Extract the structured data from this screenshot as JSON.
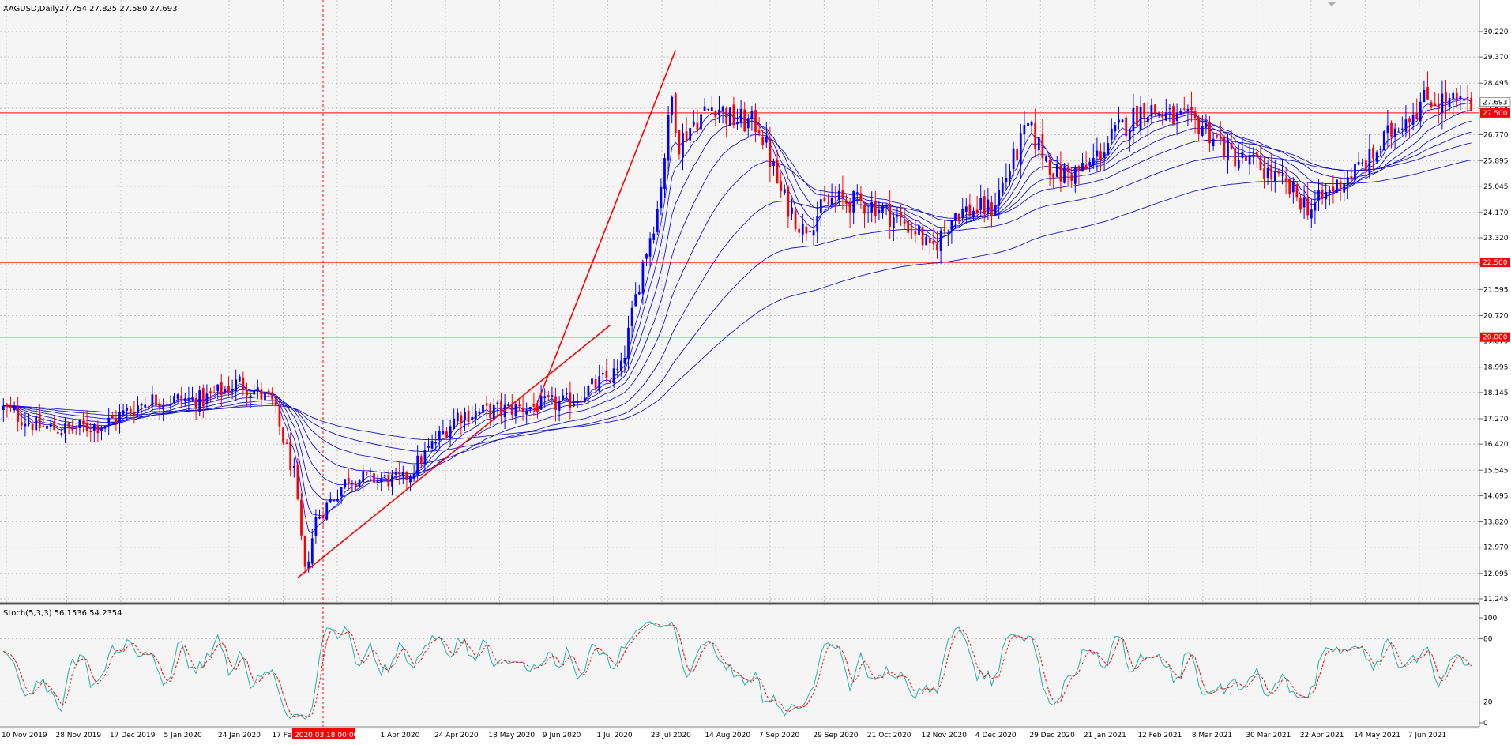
{
  "header": {
    "symbol_label": "XAGUSD,Daily",
    "ohlc_label": "27.754 27.825 27.580 27.693"
  },
  "stoch_header": {
    "label": "Stoch(5,3,3) 56.1536 54.2354"
  },
  "colors": {
    "background": "#f5f5f5",
    "grid": "#c8c8c8",
    "candle_up": "#0000ff",
    "candle_down": "#ff0000",
    "ma_ribbon": "#0000cc",
    "trendline": "#ff0000",
    "level_line": "#ff0000",
    "stoch_main": "#20b2aa",
    "stoch_signal": "#ff0000",
    "crosshair": "#ff0000"
  },
  "chart_data": [
    {
      "type": "candlestick",
      "symbol": "XAGUSD",
      "timeframe": "Daily",
      "ylim": [
        11.245,
        30.8
      ],
      "y_ticks": [
        "30.220",
        "29.370",
        "28.495",
        "27.645",
        "26.770",
        "25.895",
        "25.045",
        "24.170",
        "23.320",
        "22.445",
        "21.595",
        "20.720",
        "19.870",
        "18.995",
        "18.145",
        "17.270",
        "16.420",
        "15.545",
        "14.695",
        "13.820",
        "12.970",
        "12.095",
        "11.245"
      ],
      "x_ticks": [
        "10 Nov 2019",
        "28 Nov 2019",
        "17 Dec 2019",
        "5 Jan 2020",
        "24 Jan 2020",
        "17 Feb 2020",
        "2020.03.18 00:00",
        "1 Apr 2020",
        "24 Apr 2020",
        "18 May 2020",
        "9 Jun 2020",
        "1 Jul 2020",
        "23 Jul 2020",
        "14 Aug 2020",
        "7 Sep 2020",
        "29 Sep 2020",
        "21 Oct 2020",
        "12 Nov 2020",
        "4 Dec 2020",
        "29 Dec 2020",
        "21 Jan 2021",
        "12 Feb 2021",
        "8 Mar 2021",
        "30 Mar 2021",
        "22 Apr 2021",
        "14 May 2021",
        "7 Jun 2021"
      ],
      "crosshair_label": "2020.03.18 00:00",
      "price_label": "27.693",
      "horizontal_levels": [
        {
          "value": 27.5,
          "label": "27.500"
        },
        {
          "value": 22.5,
          "label": "22.500"
        },
        {
          "value": 20.0,
          "label": "20.000"
        }
      ],
      "price_anchors": [
        [
          0,
          17.6
        ],
        [
          10,
          17.0
        ],
        [
          18,
          16.9
        ],
        [
          28,
          17.1
        ],
        [
          40,
          17.9
        ],
        [
          55,
          17.9
        ],
        [
          65,
          18.5
        ],
        [
          74,
          17.8
        ],
        [
          80,
          15.4
        ],
        [
          83,
          12.1
        ],
        [
          86,
          13.9
        ],
        [
          95,
          15.3
        ],
        [
          110,
          15.2
        ],
        [
          125,
          17.4
        ],
        [
          140,
          17.6
        ],
        [
          155,
          17.8
        ],
        [
          170,
          18.9
        ],
        [
          176,
          22.5
        ],
        [
          180,
          24.3
        ],
        [
          184,
          28.0
        ],
        [
          186,
          26.5
        ],
        [
          190,
          27.2
        ],
        [
          196,
          27.8
        ],
        [
          200,
          27.3
        ],
        [
          208,
          27.1
        ],
        [
          214,
          24.8
        ],
        [
          220,
          23.6
        ],
        [
          228,
          24.6
        ],
        [
          240,
          24.4
        ],
        [
          252,
          23.5
        ],
        [
          255,
          22.8
        ],
        [
          262,
          24.2
        ],
        [
          272,
          24.3
        ],
        [
          282,
          27.0
        ],
        [
          290,
          25.4
        ],
        [
          298,
          25.6
        ],
        [
          306,
          26.8
        ],
        [
          314,
          27.7
        ],
        [
          322,
          27.3
        ],
        [
          330,
          27.1
        ],
        [
          338,
          26.1
        ],
        [
          346,
          25.7
        ],
        [
          354,
          24.9
        ],
        [
          360,
          24.3
        ],
        [
          368,
          25.2
        ],
        [
          376,
          25.9
        ],
        [
          384,
          27.2
        ],
        [
          392,
          28.0
        ],
        [
          400,
          27.8
        ],
        [
          404,
          27.7
        ]
      ],
      "ma_ribbon_periods": [
        5,
        8,
        13,
        21,
        34,
        55,
        89,
        144
      ]
    },
    {
      "type": "line",
      "name": "Stoch(5,3,3)",
      "indicator_values": {
        "main": 56.1536,
        "signal": 54.2354
      },
      "ylim": [
        0,
        100
      ],
      "y_ticks": [
        100,
        80,
        20,
        0
      ]
    }
  ]
}
